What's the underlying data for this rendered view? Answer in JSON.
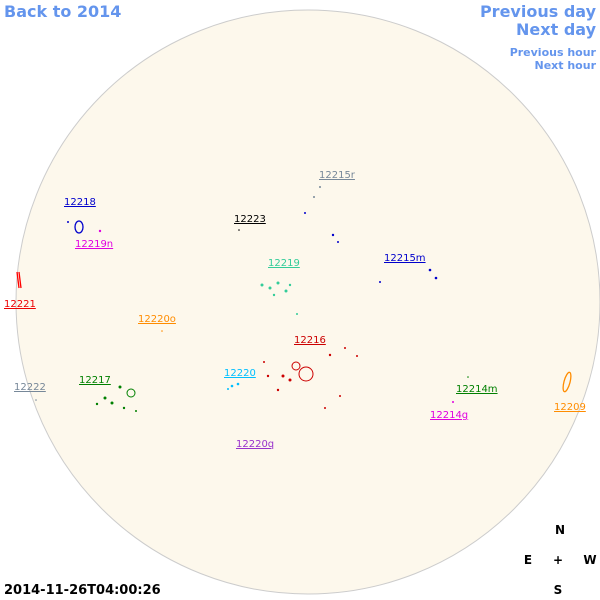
{
  "navigation": {
    "back": "Back to 2014",
    "previous_day": "Previous day",
    "next_day": "Next day",
    "previous_hour": "Previous hour",
    "next_hour": "Next hour"
  },
  "regions": [
    "12215r",
    "12218",
    "12223",
    "12219n",
    "12219",
    "12215m",
    "12221",
    "12220o",
    "12216",
    "12220",
    "12217",
    "12222",
    "12214m",
    "12209",
    "12214g",
    "12220q"
  ],
  "compass": {
    "north": "N",
    "east": "E",
    "center": "+",
    "west": "W",
    "south": "S"
  },
  "timestamp": "2014-11-26T04:00:26"
}
